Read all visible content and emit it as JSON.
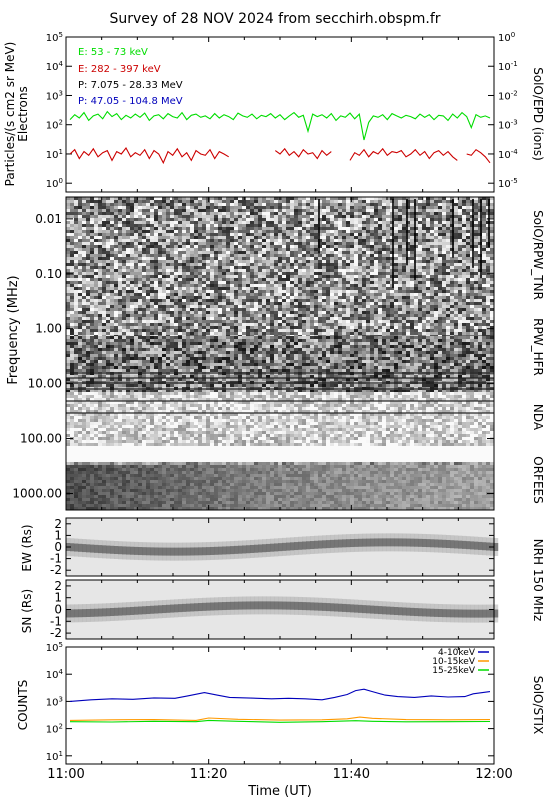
{
  "title": "Survey of 28 NOV 2024 from secchirh.obspm.fr",
  "xlabel": "Time (UT)",
  "x_ticks": [
    "11:00",
    "11:20",
    "11:40",
    "12:00"
  ],
  "colors": {
    "green": "#00dd00",
    "red": "#cc0000",
    "black": "#000000",
    "blue": "#0000bb",
    "orange": "#ff9900"
  },
  "chart_data": [
    {
      "type": "line",
      "name": "epd",
      "ylabel_left": "Particles/(s cm2 sr MeV)",
      "ylabel_left_2": "Electrons",
      "ylabel_right": "SolO/EPD (ions)",
      "y_scale": "log",
      "ylim": [
        0.5,
        100000
      ],
      "y_ticks": [
        "10^0",
        "10^1",
        "10^2",
        "10^3",
        "10^4",
        "10^5"
      ],
      "y_ticks_right": [
        "10^-5",
        "10^-4",
        "10^-3",
        "10^-2",
        "10^-1",
        "10^0"
      ],
      "x_range": [
        "11:00",
        "12:00"
      ],
      "series": [
        {
          "name": "E: 53 - 73 keV",
          "color": "#00dd00",
          "values": [
            150,
            220,
            170,
            260,
            140,
            200,
            230,
            160,
            280,
            190,
            240,
            150,
            210,
            170,
            230,
            180,
            250,
            140,
            200,
            220,
            160,
            240,
            190,
            170,
            260,
            150,
            210,
            230,
            180,
            200,
            160,
            240,
            170,
            220,
            190,
            150,
            250,
            200,
            180,
            230,
            160,
            210,
            190,
            240,
            170,
            220,
            150,
            200,
            260,
            180,
            210,
            60,
            230,
            190,
            220,
            170,
            240,
            140,
            200,
            180,
            250,
            160,
            230,
            30,
            120,
            200,
            180,
            220,
            150,
            240,
            200,
            170,
            210,
            190,
            160,
            230,
            180,
            220,
            150,
            210,
            200,
            140,
            230,
            170,
            260,
            190,
            80,
            220,
            180,
            200,
            170
          ]
        },
        {
          "name": "E: 282 - 397 keV",
          "color": "#cc0000",
          "values": [
            10,
            14,
            7,
            12,
            9,
            15,
            8,
            11,
            13,
            6,
            12,
            10,
            16,
            8,
            11,
            9,
            14,
            7,
            13,
            10,
            5,
            12,
            9,
            15,
            8,
            11,
            6,
            13,
            10,
            9,
            14,
            7,
            12,
            10,
            8,
            null,
            null,
            6,
            null,
            null,
            9,
            null,
            null,
            null,
            13,
            10,
            15,
            9,
            12,
            8,
            14,
            10,
            11,
            7,
            13,
            9,
            12,
            null,
            8,
            null,
            6,
            11,
            9,
            14,
            8,
            12,
            10,
            15,
            9,
            12,
            11,
            13,
            8,
            10,
            14,
            9,
            12,
            7,
            11,
            13,
            9,
            12,
            8,
            6,
            null,
            10,
            9,
            14,
            11,
            8,
            5
          ]
        },
        {
          "name": "P: 7.075 - 28.33 MeV",
          "color": "#000000",
          "values": []
        },
        {
          "name": "P: 47.05 - 104.8 MeV",
          "color": "#0000bb",
          "values": []
        }
      ]
    },
    {
      "type": "heatmap",
      "name": "radio-spectrogram",
      "ylabel_left": "Frequency (MHz)",
      "y_scale": "log",
      "ylim": [
        0.004,
        2000
      ],
      "y_ticks": [
        "0.01",
        "0.10",
        "1.00",
        "10.00",
        "100.00",
        "1000.00"
      ],
      "right_labels": [
        "SolO/RPW_TNR",
        "RPW_HFR",
        "NDA",
        "ORFEES"
      ]
    },
    {
      "type": "heatmap",
      "name": "nrh-ew",
      "ylabel_left": "EW (Rs)",
      "ylabel_right": "NRH 150 MHz",
      "ylim": [
        -2.5,
        2.5
      ],
      "y_ticks": [
        "2",
        "1",
        "0",
        "-1",
        "-2"
      ]
    },
    {
      "type": "heatmap",
      "name": "nrh-sn",
      "ylabel_left": "SN (Rs)",
      "ylim": [
        -2.5,
        2.5
      ],
      "y_ticks": [
        "2",
        "1",
        "0",
        "-1",
        "-2"
      ]
    },
    {
      "type": "line",
      "name": "stix",
      "ylabel_left": "COUNTS",
      "ylabel_right": "SolO/STIX",
      "y_scale": "log",
      "ylim": [
        5,
        100000
      ],
      "y_ticks": [
        "10^1",
        "10^2",
        "10^3",
        "10^4",
        "10^5"
      ],
      "x_range": [
        "11:00",
        "12:00"
      ],
      "series": [
        {
          "name": "4-10keV",
          "color": "#0000bb",
          "values": [
            [
              0,
              1000
            ],
            [
              5,
              1150
            ],
            [
              10,
              1250
            ],
            [
              15,
              1200
            ],
            [
              20,
              1350
            ],
            [
              25,
              1300
            ],
            [
              28,
              1600
            ],
            [
              32,
              2100
            ],
            [
              35,
              1700
            ],
            [
              38,
              1400
            ],
            [
              42,
              1350
            ],
            [
              48,
              1250
            ],
            [
              52,
              1300
            ],
            [
              56,
              1250
            ],
            [
              60,
              1150
            ],
            [
              63,
              1400
            ],
            [
              66,
              1800
            ],
            [
              68,
              2500
            ],
            [
              70,
              2800
            ],
            [
              72,
              2300
            ],
            [
              75,
              1700
            ],
            [
              78,
              1500
            ],
            [
              82,
              1400
            ],
            [
              86,
              1600
            ],
            [
              90,
              1450
            ],
            [
              94,
              1500
            ],
            [
              96,
              1900
            ],
            [
              100,
              2300
            ]
          ]
        },
        {
          "name": "10-15keV",
          "color": "#ff9900",
          "values": [
            [
              0,
              200
            ],
            [
              10,
              210
            ],
            [
              20,
              215
            ],
            [
              30,
              200
            ],
            [
              33,
              245
            ],
            [
              40,
              220
            ],
            [
              50,
              205
            ],
            [
              60,
              210
            ],
            [
              66,
              230
            ],
            [
              69,
              265
            ],
            [
              72,
              240
            ],
            [
              80,
              215
            ],
            [
              90,
              210
            ],
            [
              100,
              215
            ]
          ]
        },
        {
          "name": "15-25keV",
          "color": "#00dd00",
          "values": [
            [
              0,
              180
            ],
            [
              10,
              175
            ],
            [
              20,
              185
            ],
            [
              30,
              180
            ],
            [
              33,
              200
            ],
            [
              40,
              185
            ],
            [
              50,
              170
            ],
            [
              60,
              180
            ],
            [
              68,
              195
            ],
            [
              72,
              185
            ],
            [
              80,
              178
            ],
            [
              90,
              180
            ],
            [
              100,
              182
            ]
          ]
        }
      ]
    }
  ]
}
